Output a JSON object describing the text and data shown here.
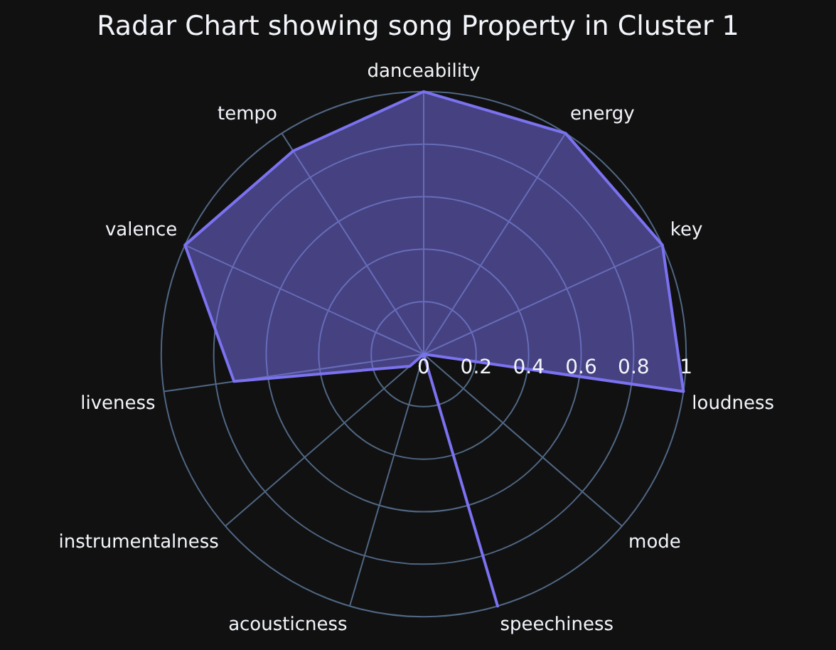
{
  "chart_data": {
    "type": "radar",
    "title": "Radar Chart showing song Property in Cluster 1",
    "categories": [
      "danceability",
      "energy",
      "key",
      "loudness",
      "mode",
      "speechiness",
      "acousticness",
      "instrumentalness",
      "liveness",
      "valence",
      "tempo"
    ],
    "series": [
      {
        "color": "#7b72f0",
        "values": [
          1.0,
          1.0,
          1.0,
          1.0,
          0,
          1.0,
          0,
          0.07,
          0.73,
          1.0,
          0.92
        ]
      }
    ],
    "ylim": [
      0,
      1
    ],
    "yticks": [
      0,
      0.2,
      0.4,
      0.6,
      0.8,
      1
    ],
    "grid": true,
    "legend": false,
    "marker": "none"
  }
}
